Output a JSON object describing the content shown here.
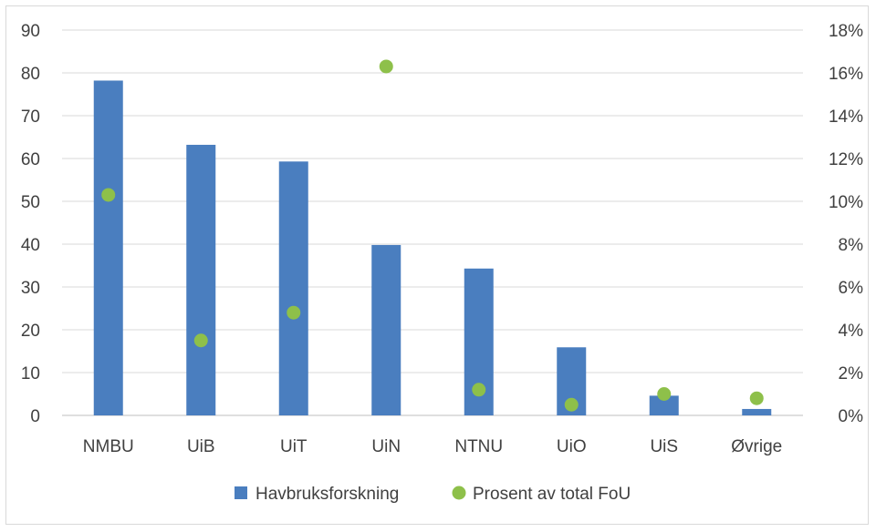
{
  "chart_data": {
    "type": "bar",
    "categories": [
      "NMBU",
      "UiB",
      "UiT",
      "UiN",
      "NTNU",
      "UiO",
      "UiS",
      "Øvrige"
    ],
    "series": [
      {
        "name": "Havbruksforskning",
        "type": "bar",
        "axis": "left",
        "color": "#4a7ebf",
        "values": [
          78.2,
          63.2,
          59.3,
          39.8,
          34.3,
          15.9,
          4.6,
          1.5
        ]
      },
      {
        "name": "Prosent av total FoU",
        "type": "scatter",
        "axis": "right",
        "color": "#8ec04a",
        "values": [
          10.3,
          3.5,
          4.8,
          16.3,
          1.2,
          0.5,
          1.0,
          0.8
        ]
      }
    ],
    "y_left": {
      "ylim": [
        0,
        90
      ],
      "ticks": [
        "0",
        "10",
        "20",
        "30",
        "40",
        "50",
        "60",
        "70",
        "80",
        "90"
      ]
    },
    "y_right": {
      "ylim": [
        0,
        18
      ],
      "ticks": [
        "0%",
        "2%",
        "4%",
        "6%",
        "8%",
        "10%",
        "12%",
        "14%",
        "16%",
        "18%"
      ]
    },
    "grid": true,
    "legend": "bottom"
  }
}
